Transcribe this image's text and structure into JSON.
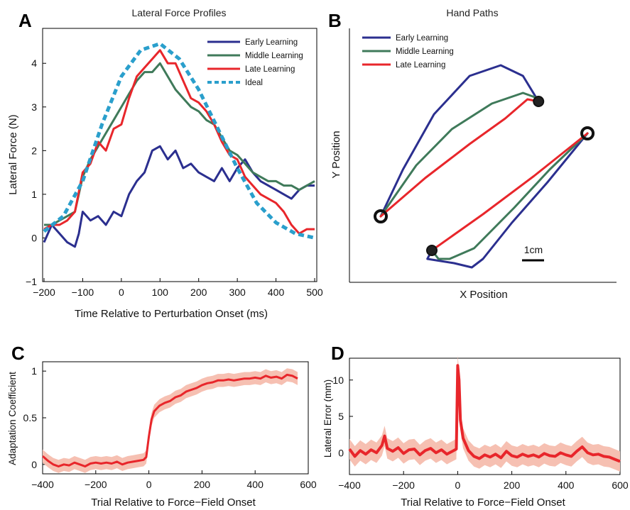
{
  "chart_data": [
    {
      "panel": "A",
      "type": "line",
      "title": "Lateral Force Profiles",
      "xlabel": "Time Relative to Perturbation Onset (ms)",
      "ylabel": "Lateral Force  (N)",
      "xlim": [
        -200,
        500
      ],
      "ylim": [
        -1,
        4.8
      ],
      "xticks": [
        -200,
        -100,
        0,
        100,
        200,
        300,
        400,
        500
      ],
      "yticks": [
        -1,
        0,
        1,
        2,
        3,
        4
      ],
      "legend_position": "top-right",
      "colors": {
        "early": "#2b2f8f",
        "middle": "#3f7a5a",
        "late": "#e8262b",
        "ideal": "#2a9fcc"
      },
      "series": [
        {
          "name": "Early Learning",
          "x": [
            -200,
            -180,
            -160,
            -140,
            -120,
            -110,
            -100,
            -80,
            -60,
            -40,
            -20,
            0,
            20,
            40,
            60,
            80,
            100,
            120,
            140,
            160,
            180,
            200,
            220,
            240,
            260,
            280,
            300,
            320,
            340,
            360,
            380,
            400,
            420,
            440,
            460,
            480,
            500
          ],
          "y": [
            -0.1,
            0.3,
            0.1,
            -0.1,
            -0.2,
            0.1,
            0.6,
            0.4,
            0.5,
            0.3,
            0.6,
            0.5,
            1.0,
            1.3,
            1.5,
            2.0,
            2.1,
            1.8,
            2.0,
            1.6,
            1.7,
            1.5,
            1.4,
            1.3,
            1.6,
            1.3,
            1.6,
            1.8,
            1.5,
            1.3,
            1.2,
            1.1,
            1.0,
            0.9,
            1.1,
            1.2,
            1.2
          ]
        },
        {
          "name": "Middle Learning",
          "x": [
            -200,
            -180,
            -160,
            -140,
            -120,
            -100,
            -80,
            -60,
            -40,
            -20,
            0,
            20,
            40,
            60,
            80,
            100,
            120,
            140,
            160,
            180,
            200,
            220,
            240,
            260,
            280,
            300,
            320,
            340,
            360,
            380,
            400,
            420,
            440,
            460,
            480,
            500
          ],
          "y": [
            0.3,
            0.3,
            0.4,
            0.5,
            0.6,
            1.4,
            1.8,
            2.1,
            2.4,
            2.7,
            3.0,
            3.3,
            3.6,
            3.8,
            3.8,
            4.0,
            3.7,
            3.4,
            3.2,
            3.0,
            2.9,
            2.7,
            2.6,
            2.3,
            2.0,
            1.9,
            1.7,
            1.5,
            1.4,
            1.3,
            1.3,
            1.2,
            1.2,
            1.1,
            1.2,
            1.3
          ]
        },
        {
          "name": "Late Learning",
          "x": [
            -200,
            -180,
            -160,
            -140,
            -120,
            -100,
            -80,
            -60,
            -40,
            -20,
            0,
            20,
            40,
            60,
            80,
            100,
            120,
            140,
            160,
            180,
            200,
            220,
            240,
            260,
            280,
            300,
            320,
            340,
            360,
            380,
            400,
            420,
            440,
            460,
            480,
            500
          ],
          "y": [
            0.2,
            0.3,
            0.3,
            0.4,
            0.6,
            1.5,
            1.7,
            2.2,
            2.0,
            2.5,
            2.6,
            3.2,
            3.7,
            3.9,
            4.1,
            4.3,
            4.0,
            4.0,
            3.6,
            3.2,
            3.1,
            2.9,
            2.6,
            2.2,
            1.9,
            1.8,
            1.4,
            1.2,
            1.0,
            0.9,
            0.8,
            0.6,
            0.3,
            0.1,
            0.2,
            0.2
          ]
        },
        {
          "name": "Ideal",
          "style": "dashed",
          "x": [
            -200,
            -150,
            -100,
            -50,
            0,
            50,
            100,
            150,
            200,
            250,
            300,
            350,
            400,
            450,
            500
          ],
          "y": [
            0.15,
            0.5,
            1.3,
            2.6,
            3.7,
            4.3,
            4.45,
            4.1,
            3.4,
            2.5,
            1.6,
            0.8,
            0.35,
            0.1,
            0.0
          ]
        }
      ]
    },
    {
      "panel": "B",
      "type": "line",
      "title": "Hand Paths",
      "xlabel": "X Position",
      "ylabel": "Y Position",
      "scale_bar_label": "1cm",
      "legend_position": "top-left",
      "colors": {
        "early": "#2b2f8f",
        "middle": "#3f7a5a",
        "late": "#e8262b"
      },
      "targets": [
        [
          0.0,
          0.0
        ],
        [
          7.1,
          5.4
        ],
        [
          2.3,
          -1.6
        ],
        [
          9.3,
          3.9
        ]
      ],
      "series": [
        {
          "name": "Early Learning",
          "paths": [
            [
              [
                0.0,
                0.0
              ],
              [
                1.0,
                2.2
              ],
              [
                2.4,
                4.8
              ],
              [
                4.0,
                6.6
              ],
              [
                5.4,
                7.1
              ],
              [
                6.4,
                6.6
              ],
              [
                7.1,
                5.4
              ]
            ],
            [
              [
                9.3,
                3.9
              ],
              [
                7.5,
                1.6
              ],
              [
                5.9,
                -0.3
              ],
              [
                4.6,
                -2.0
              ],
              [
                4.1,
                -2.4
              ],
              [
                3.3,
                -2.2
              ],
              [
                2.1,
                -2.0
              ],
              [
                2.3,
                -1.6
              ]
            ]
          ]
        },
        {
          "name": "Middle Learning",
          "paths": [
            [
              [
                0.0,
                0.0
              ],
              [
                1.6,
                2.4
              ],
              [
                3.2,
                4.1
              ],
              [
                5.0,
                5.3
              ],
              [
                6.4,
                5.8
              ],
              [
                7.2,
                5.5
              ],
              [
                7.1,
                5.4
              ]
            ],
            [
              [
                9.3,
                3.9
              ],
              [
                7.6,
                2.2
              ],
              [
                6.0,
                0.4
              ],
              [
                4.2,
                -1.5
              ],
              [
                3.1,
                -2.0
              ],
              [
                2.6,
                -2.0
              ],
              [
                2.3,
                -1.6
              ]
            ]
          ]
        },
        {
          "name": "Late Learning",
          "paths": [
            [
              [
                0.0,
                0.0
              ],
              [
                2.0,
                1.8
              ],
              [
                4.0,
                3.4
              ],
              [
                5.6,
                4.6
              ],
              [
                6.6,
                5.5
              ],
              [
                7.1,
                5.4
              ]
            ],
            [
              [
                9.3,
                3.9
              ],
              [
                6.9,
                1.9
              ],
              [
                4.6,
                0.1
              ],
              [
                2.3,
                -1.6
              ]
            ]
          ]
        }
      ]
    },
    {
      "panel": "C",
      "type": "line",
      "xlabel": "Trial Relative to Force−Field Onset",
      "ylabel": "Adaptation Coefficient",
      "xlim": [
        -400,
        600
      ],
      "ylim": [
        -0.1,
        1.1
      ],
      "xticks": [
        -400,
        -200,
        0,
        200,
        400,
        600
      ],
      "yticks": [
        0,
        0.5,
        1
      ],
      "ytick_labels": [
        "0",
        "0.5",
        "1"
      ],
      "colors": {
        "line": "#e8262b",
        "band": "#f6c0b2"
      },
      "series": [
        {
          "x": [
            -400,
            -380,
            -360,
            -340,
            -320,
            -300,
            -280,
            -260,
            -240,
            -220,
            -200,
            -180,
            -160,
            -140,
            -120,
            -100,
            -80,
            -60,
            -40,
            -20,
            -10,
            0,
            10,
            20,
            40,
            60,
            80,
            100,
            120,
            140,
            160,
            180,
            200,
            220,
            240,
            260,
            280,
            300,
            320,
            340,
            360,
            380,
            400,
            420,
            440,
            460,
            480,
            500,
            520,
            540,
            560
          ],
          "y": [
            0.09,
            0.04,
            0.0,
            -0.02,
            0.0,
            -0.01,
            0.02,
            0.0,
            -0.02,
            0.01,
            0.02,
            0.01,
            0.02,
            0.01,
            0.03,
            0.0,
            0.02,
            0.03,
            0.04,
            0.05,
            0.08,
            0.3,
            0.48,
            0.57,
            0.63,
            0.66,
            0.68,
            0.72,
            0.74,
            0.78,
            0.8,
            0.82,
            0.85,
            0.87,
            0.88,
            0.9,
            0.9,
            0.91,
            0.9,
            0.91,
            0.92,
            0.92,
            0.93,
            0.92,
            0.95,
            0.93,
            0.94,
            0.92,
            0.96,
            0.95,
            0.92
          ],
          "error": 0.07
        }
      ]
    },
    {
      "panel": "D",
      "type": "line",
      "xlabel": "Trial Relative to Force−Field Onset",
      "ylabel": "Lateral Error (mm)",
      "xlim": [
        -400,
        600
      ],
      "ylim": [
        -3,
        13
      ],
      "xticks": [
        -400,
        -200,
        0,
        200,
        400,
        600
      ],
      "yticks": [
        0,
        5,
        10
      ],
      "colors": {
        "line": "#e8262b",
        "band": "#f6c0b2"
      },
      "series": [
        {
          "x": [
            -400,
            -380,
            -360,
            -340,
            -320,
            -300,
            -280,
            -270,
            -260,
            -240,
            -220,
            -200,
            -180,
            -160,
            -140,
            -120,
            -100,
            -80,
            -60,
            -40,
            -20,
            -5,
            0,
            5,
            10,
            20,
            40,
            60,
            80,
            100,
            120,
            140,
            160,
            180,
            200,
            220,
            240,
            260,
            280,
            300,
            320,
            340,
            360,
            380,
            400,
            420,
            440,
            460,
            480,
            500,
            520,
            540,
            560,
            580,
            600
          ],
          "y": [
            0.5,
            -0.5,
            0.3,
            -0.2,
            0.4,
            0.0,
            1.0,
            2.3,
            0.6,
            0.2,
            0.7,
            -0.1,
            0.4,
            0.5,
            -0.3,
            0.3,
            0.6,
            0.0,
            0.4,
            -0.2,
            0.2,
            0.5,
            12.0,
            10.0,
            4.5,
            2.0,
            0.3,
            -0.5,
            -0.8,
            -0.3,
            -0.6,
            -0.2,
            -0.7,
            0.2,
            -0.4,
            -0.6,
            -0.2,
            -0.5,
            -0.3,
            -0.6,
            -0.1,
            -0.4,
            -0.5,
            0.0,
            -0.3,
            -0.5,
            0.2,
            0.8,
            0.0,
            -0.3,
            -0.2,
            -0.5,
            -0.6,
            -0.9,
            -1.2
          ],
          "error": 1.4
        }
      ]
    }
  ]
}
